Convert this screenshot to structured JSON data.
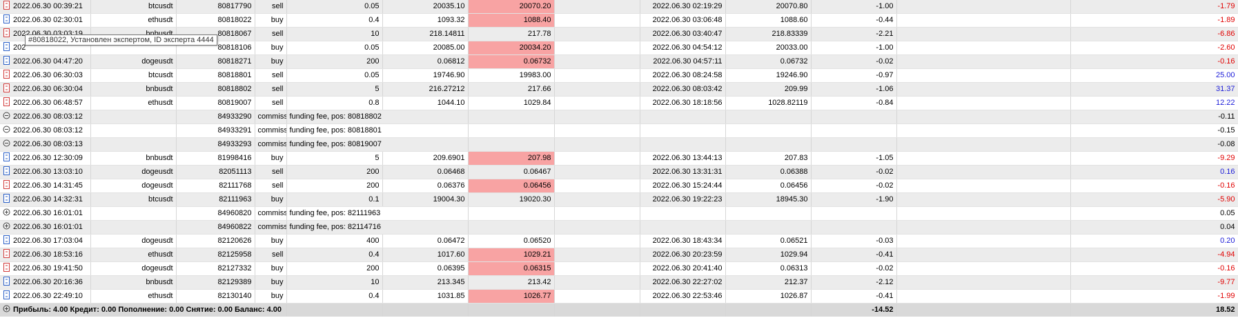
{
  "colors": {
    "highlight": "#f8a3a3",
    "negative": "#e00000",
    "positive": "#1a1ad8"
  },
  "rows": [
    {
      "kind": "trade",
      "icon": "sell-order-icon",
      "time": "2022.06.30 00:39:21",
      "symbol": "btcusdt",
      "ticket": "80817790",
      "type": "sell",
      "volume": "0.05",
      "price": "20035.10",
      "sl": "20070.20",
      "sl_hl": true,
      "tp": "",
      "close_time": "2022.06.30 02:19:29",
      "close_price": "20070.80",
      "commission": "-1.00",
      "swap": "",
      "profit": "-1.79",
      "profit_class": "neg"
    },
    {
      "kind": "trade",
      "icon": "buy-order-icon",
      "time": "2022.06.30 02:30:01",
      "symbol": "ethusdt",
      "ticket": "80818022",
      "type": "buy",
      "volume": "0.4",
      "price": "1093.32",
      "sl": "1088.40",
      "sl_hl": true,
      "tp": "",
      "close_time": "2022.06.30 03:06:48",
      "close_price": "1088.60",
      "commission": "-0.44",
      "swap": "",
      "profit": "-1.89",
      "profit_class": "neg"
    },
    {
      "kind": "trade",
      "icon": "sell-order-icon",
      "time": "2022.06.30 03:03:19",
      "symbol": "bnbusdt",
      "ticket": "80818067",
      "type": "sell",
      "volume": "10",
      "price": "218.14811",
      "sl": "217.78",
      "sl_hl": false,
      "tp": "",
      "close_time": "2022.06.30 03:40:47",
      "close_price": "218.83339",
      "commission": "-2.21",
      "swap": "",
      "profit": "-6.86",
      "profit_class": "neg"
    },
    {
      "kind": "trade",
      "icon": "buy-order-icon",
      "time": "202",
      "symbol": "",
      "ticket": "80818106",
      "type": "buy",
      "volume": "0.05",
      "price": "20085.00",
      "sl": "20034.20",
      "sl_hl": true,
      "tp": "",
      "close_time": "2022.06.30 04:54:12",
      "close_price": "20033.00",
      "commission": "-1.00",
      "swap": "",
      "profit": "-2.60",
      "profit_class": "neg"
    },
    {
      "kind": "trade",
      "icon": "buy-order-icon",
      "time": "2022.06.30 04:47:20",
      "symbol": "dogeusdt",
      "ticket": "80818271",
      "type": "buy",
      "volume": "200",
      "price": "0.06812",
      "sl": "0.06732",
      "sl_hl": true,
      "tp": "",
      "close_time": "2022.06.30 04:57:11",
      "close_price": "0.06732",
      "commission": "-0.02",
      "swap": "",
      "profit": "-0.16",
      "profit_class": "neg"
    },
    {
      "kind": "trade",
      "icon": "sell-order-icon",
      "time": "2022.06.30 06:30:03",
      "symbol": "btcusdt",
      "ticket": "80818801",
      "type": "sell",
      "volume": "0.05",
      "price": "19746.90",
      "sl": "19983.00",
      "sl_hl": false,
      "tp": "",
      "close_time": "2022.06.30 08:24:58",
      "close_price": "19246.90",
      "commission": "-0.97",
      "swap": "",
      "profit": "25.00",
      "profit_class": "pos"
    },
    {
      "kind": "trade",
      "icon": "sell-order-icon",
      "time": "2022.06.30 06:30:04",
      "symbol": "bnbusdt",
      "ticket": "80818802",
      "type": "sell",
      "volume": "5",
      "price": "216.27212",
      "sl": "217.66",
      "sl_hl": false,
      "tp": "",
      "close_time": "2022.06.30 08:03:42",
      "close_price": "209.99",
      "commission": "-1.06",
      "swap": "",
      "profit": "31.37",
      "profit_class": "pos"
    },
    {
      "kind": "trade",
      "icon": "sell-order-icon",
      "time": "2022.06.30 06:48:57",
      "symbol": "ethusdt",
      "ticket": "80819007",
      "type": "sell",
      "volume": "0.8",
      "price": "1044.10",
      "sl": "1029.84",
      "sl_hl": false,
      "tp": "",
      "close_time": "2022.06.30 18:18:56",
      "close_price": "1028.82119",
      "commission": "-0.84",
      "swap": "",
      "profit": "12.22",
      "profit_class": "pos"
    },
    {
      "kind": "op",
      "icon": "minus-circle-icon",
      "time": "2022.06.30 08:03:12",
      "ticket": "84933290",
      "type": "commission",
      "comment": "funding fee, pos: 80818802",
      "profit": "-0.11",
      "profit_class": "blk"
    },
    {
      "kind": "op",
      "icon": "minus-circle-icon",
      "time": "2022.06.30 08:03:12",
      "ticket": "84933291",
      "type": "commission",
      "comment": "funding fee, pos: 80818801",
      "profit": "-0.15",
      "profit_class": "blk"
    },
    {
      "kind": "op",
      "icon": "minus-circle-icon",
      "time": "2022.06.30 08:03:13",
      "ticket": "84933293",
      "type": "commission",
      "comment": "funding fee, pos: 80819007",
      "profit": "-0.08",
      "profit_class": "blk"
    },
    {
      "kind": "trade",
      "icon": "buy-order-icon",
      "time": "2022.06.30 12:30:09",
      "symbol": "bnbusdt",
      "ticket": "81998416",
      "type": "buy",
      "volume": "5",
      "price": "209.6901",
      "sl": "207.98",
      "sl_hl": true,
      "tp": "",
      "close_time": "2022.06.30 13:44:13",
      "close_price": "207.83",
      "commission": "-1.05",
      "swap": "",
      "profit": "-9.29",
      "profit_class": "neg"
    },
    {
      "kind": "trade",
      "icon": "buy-order-icon",
      "time": "2022.06.30 13:03:10",
      "symbol": "dogeusdt",
      "ticket": "82051113",
      "type": "sell",
      "volume": "200",
      "price": "0.06468",
      "sl": "0.06467",
      "sl_hl": false,
      "tp": "",
      "close_time": "2022.06.30 13:31:31",
      "close_price": "0.06388",
      "commission": "-0.02",
      "swap": "",
      "profit": "0.16",
      "profit_class": "pos"
    },
    {
      "kind": "trade",
      "icon": "sell-order-icon",
      "time": "2022.06.30 14:31:45",
      "symbol": "dogeusdt",
      "ticket": "82111768",
      "type": "sell",
      "volume": "200",
      "price": "0.06376",
      "sl": "0.06456",
      "sl_hl": true,
      "tp": "",
      "close_time": "2022.06.30 15:24:44",
      "close_price": "0.06456",
      "commission": "-0.02",
      "swap": "",
      "profit": "-0.16",
      "profit_class": "neg"
    },
    {
      "kind": "trade",
      "icon": "buy-order-icon",
      "time": "2022.06.30 14:32:31",
      "symbol": "btcusdt",
      "ticket": "82111963",
      "type": "buy",
      "volume": "0.1",
      "price": "19004.30",
      "sl": "19020.30",
      "sl_hl": false,
      "tp": "",
      "close_time": "2022.06.30 19:22:23",
      "close_price": "18945.30",
      "commission": "-1.90",
      "swap": "",
      "profit": "-5.90",
      "profit_class": "neg"
    },
    {
      "kind": "op",
      "icon": "plus-circle-icon",
      "time": "2022.06.30 16:01:01",
      "ticket": "84960820",
      "type": "commission",
      "comment": "funding fee, pos: 82111963",
      "profit": "0.05",
      "profit_class": "blk"
    },
    {
      "kind": "op",
      "icon": "plus-circle-icon",
      "time": "2022.06.30 16:01:01",
      "ticket": "84960822",
      "type": "commission",
      "comment": "funding fee, pos: 82114716",
      "profit": "0.04",
      "profit_class": "blk"
    },
    {
      "kind": "trade",
      "icon": "buy-order-icon",
      "time": "2022.06.30 17:03:04",
      "symbol": "dogeusdt",
      "ticket": "82120626",
      "type": "buy",
      "volume": "400",
      "price": "0.06472",
      "sl": "0.06520",
      "sl_hl": false,
      "tp": "",
      "close_time": "2022.06.30 18:43:34",
      "close_price": "0.06521",
      "commission": "-0.03",
      "swap": "",
      "profit": "0.20",
      "profit_class": "pos"
    },
    {
      "kind": "trade",
      "icon": "sell-order-icon",
      "time": "2022.06.30 18:53:16",
      "symbol": "ethusdt",
      "ticket": "82125958",
      "type": "sell",
      "volume": "0.4",
      "price": "1017.60",
      "sl": "1029.21",
      "sl_hl": true,
      "tp": "",
      "close_time": "2022.06.30 20:23:59",
      "close_price": "1029.94",
      "commission": "-0.41",
      "swap": "",
      "profit": "-4.94",
      "profit_class": "neg"
    },
    {
      "kind": "trade",
      "icon": "sell-order-icon",
      "time": "2022.06.30 19:41:50",
      "symbol": "dogeusdt",
      "ticket": "82127332",
      "type": "buy",
      "volume": "200",
      "price": "0.06395",
      "sl": "0.06315",
      "sl_hl": true,
      "tp": "",
      "close_time": "2022.06.30 20:41:40",
      "close_price": "0.06313",
      "commission": "-0.02",
      "swap": "",
      "profit": "-0.16",
      "profit_class": "neg"
    },
    {
      "kind": "trade",
      "icon": "buy-order-icon",
      "time": "2022.06.30 20:16:36",
      "symbol": "bnbusdt",
      "ticket": "82129389",
      "type": "buy",
      "volume": "10",
      "price": "213.345",
      "sl": "213.42",
      "sl_hl": false,
      "tp": "",
      "close_time": "2022.06.30 22:27:02",
      "close_price": "212.37",
      "commission": "-2.12",
      "swap": "",
      "profit": "-9.77",
      "profit_class": "neg"
    },
    {
      "kind": "trade",
      "icon": "buy-order-icon",
      "time": "2022.06.30 22:49:10",
      "symbol": "ethusdt",
      "ticket": "82130140",
      "type": "buy",
      "volume": "0.4",
      "price": "1031.85",
      "sl": "1026.77",
      "sl_hl": true,
      "tp": "",
      "close_time": "2022.06.30 22:53:46",
      "close_price": "1026.87",
      "commission": "-0.41",
      "swap": "",
      "profit": "-1.99",
      "profit_class": "neg"
    }
  ],
  "footer": {
    "summary": "Прибыль: 4.00  Кредит: 0.00  Пополнение: 0.00  Снятие: 0.00  Баланс: 4.00",
    "commission_total": "-14.52",
    "profit_total": "18.52"
  },
  "tooltip": {
    "text": "#80818022, Установлен экспертом, ID эксперта 4444"
  }
}
